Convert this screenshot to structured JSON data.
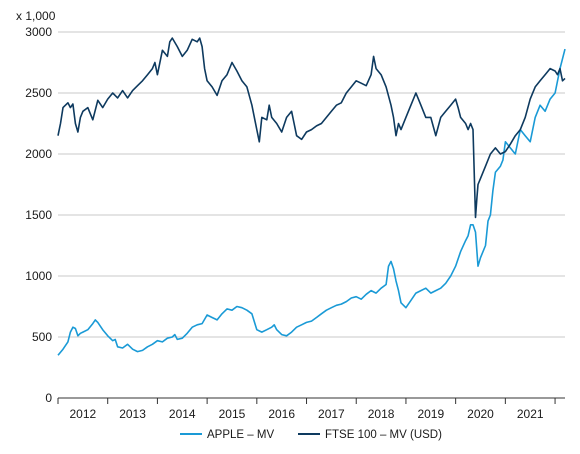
{
  "chart_data": {
    "type": "line",
    "unit_label": "x 1,000",
    "ylim": [
      0,
      3000
    ],
    "yticks": [
      0,
      500,
      1000,
      1500,
      2000,
      2500,
      3000
    ],
    "xlim": [
      2011.5,
      2021.7
    ],
    "xticks": [
      {
        "label": "2012",
        "at": 2012
      },
      {
        "label": "2013",
        "at": 2013
      },
      {
        "label": "2014",
        "at": 2014
      },
      {
        "label": "2015",
        "at": 2015
      },
      {
        "label": "2016",
        "at": 2016
      },
      {
        "label": "2017",
        "at": 2017
      },
      {
        "label": "2018",
        "at": 2018
      },
      {
        "label": "2019",
        "at": 2019
      },
      {
        "label": "2020",
        "at": 2020
      },
      {
        "label": "2021",
        "at": 2021
      }
    ],
    "grid": true,
    "legend_position": "bottom",
    "series": [
      {
        "name": "APPLE – MV",
        "color": "#1a9ad6",
        "points": [
          [
            2011.5,
            350
          ],
          [
            2011.6,
            400
          ],
          [
            2011.7,
            460
          ],
          [
            2011.75,
            540
          ],
          [
            2011.8,
            580
          ],
          [
            2011.85,
            570
          ],
          [
            2011.9,
            510
          ],
          [
            2011.95,
            530
          ],
          [
            2012.0,
            540
          ],
          [
            2012.1,
            560
          ],
          [
            2012.2,
            610
          ],
          [
            2012.25,
            640
          ],
          [
            2012.3,
            620
          ],
          [
            2012.4,
            560
          ],
          [
            2012.5,
            510
          ],
          [
            2012.6,
            470
          ],
          [
            2012.65,
            480
          ],
          [
            2012.7,
            420
          ],
          [
            2012.8,
            410
          ],
          [
            2012.9,
            440
          ],
          [
            2013.0,
            400
          ],
          [
            2013.1,
            380
          ],
          [
            2013.2,
            390
          ],
          [
            2013.3,
            420
          ],
          [
            2013.4,
            440
          ],
          [
            2013.5,
            470
          ],
          [
            2013.6,
            460
          ],
          [
            2013.7,
            490
          ],
          [
            2013.8,
            500
          ],
          [
            2013.85,
            520
          ],
          [
            2013.9,
            480
          ],
          [
            2014.0,
            490
          ],
          [
            2014.1,
            530
          ],
          [
            2014.2,
            580
          ],
          [
            2014.3,
            600
          ],
          [
            2014.4,
            610
          ],
          [
            2014.5,
            680
          ],
          [
            2014.6,
            660
          ],
          [
            2014.7,
            640
          ],
          [
            2014.8,
            690
          ],
          [
            2014.9,
            730
          ],
          [
            2015.0,
            720
          ],
          [
            2015.1,
            750
          ],
          [
            2015.2,
            740
          ],
          [
            2015.3,
            720
          ],
          [
            2015.4,
            690
          ],
          [
            2015.5,
            560
          ],
          [
            2015.6,
            540
          ],
          [
            2015.7,
            560
          ],
          [
            2015.8,
            580
          ],
          [
            2015.85,
            600
          ],
          [
            2015.9,
            560
          ],
          [
            2016.0,
            520
          ],
          [
            2016.1,
            510
          ],
          [
            2016.2,
            540
          ],
          [
            2016.3,
            580
          ],
          [
            2016.4,
            600
          ],
          [
            2016.5,
            620
          ],
          [
            2016.6,
            630
          ],
          [
            2016.7,
            660
          ],
          [
            2016.8,
            690
          ],
          [
            2016.9,
            720
          ],
          [
            2017.0,
            740
          ],
          [
            2017.1,
            760
          ],
          [
            2017.2,
            770
          ],
          [
            2017.3,
            790
          ],
          [
            2017.4,
            820
          ],
          [
            2017.5,
            830
          ],
          [
            2017.6,
            810
          ],
          [
            2017.7,
            850
          ],
          [
            2017.8,
            880
          ],
          [
            2017.9,
            860
          ],
          [
            2018.0,
            900
          ],
          [
            2018.1,
            930
          ],
          [
            2018.15,
            1080
          ],
          [
            2018.2,
            1120
          ],
          [
            2018.25,
            1060
          ],
          [
            2018.3,
            960
          ],
          [
            2018.35,
            880
          ],
          [
            2018.4,
            780
          ],
          [
            2018.5,
            740
          ],
          [
            2018.6,
            800
          ],
          [
            2018.7,
            860
          ],
          [
            2018.8,
            880
          ],
          [
            2018.9,
            900
          ],
          [
            2019.0,
            860
          ],
          [
            2019.1,
            880
          ],
          [
            2019.2,
            900
          ],
          [
            2019.3,
            940
          ],
          [
            2019.4,
            1000
          ],
          [
            2019.5,
            1080
          ],
          [
            2019.6,
            1200
          ],
          [
            2019.7,
            1290
          ],
          [
            2019.75,
            1330
          ],
          [
            2019.8,
            1420
          ],
          [
            2019.85,
            1420
          ],
          [
            2019.9,
            1360
          ],
          [
            2019.95,
            1080
          ],
          [
            2020.0,
            1150
          ],
          [
            2020.1,
            1250
          ],
          [
            2020.15,
            1450
          ],
          [
            2020.2,
            1500
          ],
          [
            2020.25,
            1700
          ],
          [
            2020.3,
            1850
          ],
          [
            2020.4,
            1900
          ],
          [
            2020.45,
            1950
          ],
          [
            2020.5,
            2100
          ],
          [
            2020.6,
            2050
          ],
          [
            2020.7,
            2000
          ],
          [
            2020.8,
            2200
          ],
          [
            2020.9,
            2150
          ],
          [
            2021.0,
            2100
          ],
          [
            2021.1,
            2300
          ],
          [
            2021.2,
            2400
          ],
          [
            2021.3,
            2350
          ],
          [
            2021.4,
            2450
          ],
          [
            2021.5,
            2500
          ],
          [
            2021.6,
            2700
          ],
          [
            2021.7,
            2860
          ]
        ]
      },
      {
        "name": "FTSE 100 – MV (USD)",
        "color": "#0e3a5f",
        "points": [
          [
            2011.5,
            2150
          ],
          [
            2011.55,
            2250
          ],
          [
            2011.6,
            2380
          ],
          [
            2011.7,
            2420
          ],
          [
            2011.75,
            2380
          ],
          [
            2011.8,
            2410
          ],
          [
            2011.85,
            2250
          ],
          [
            2011.9,
            2180
          ],
          [
            2011.95,
            2300
          ],
          [
            2012.0,
            2350
          ],
          [
            2012.1,
            2380
          ],
          [
            2012.2,
            2280
          ],
          [
            2012.3,
            2440
          ],
          [
            2012.4,
            2380
          ],
          [
            2012.5,
            2450
          ],
          [
            2012.6,
            2500
          ],
          [
            2012.7,
            2460
          ],
          [
            2012.8,
            2520
          ],
          [
            2012.9,
            2460
          ],
          [
            2013.0,
            2520
          ],
          [
            2013.1,
            2560
          ],
          [
            2013.2,
            2600
          ],
          [
            2013.3,
            2650
          ],
          [
            2013.4,
            2700
          ],
          [
            2013.45,
            2750
          ],
          [
            2013.5,
            2650
          ],
          [
            2013.6,
            2850
          ],
          [
            2013.7,
            2800
          ],
          [
            2013.75,
            2920
          ],
          [
            2013.8,
            2950
          ],
          [
            2013.9,
            2880
          ],
          [
            2014.0,
            2800
          ],
          [
            2014.1,
            2850
          ],
          [
            2014.2,
            2940
          ],
          [
            2014.3,
            2920
          ],
          [
            2014.35,
            2950
          ],
          [
            2014.4,
            2880
          ],
          [
            2014.45,
            2700
          ],
          [
            2014.5,
            2600
          ],
          [
            2014.6,
            2550
          ],
          [
            2014.7,
            2480
          ],
          [
            2014.8,
            2600
          ],
          [
            2014.9,
            2650
          ],
          [
            2015.0,
            2750
          ],
          [
            2015.1,
            2680
          ],
          [
            2015.2,
            2600
          ],
          [
            2015.3,
            2550
          ],
          [
            2015.4,
            2400
          ],
          [
            2015.5,
            2200
          ],
          [
            2015.55,
            2100
          ],
          [
            2015.6,
            2300
          ],
          [
            2015.7,
            2280
          ],
          [
            2015.75,
            2400
          ],
          [
            2015.8,
            2300
          ],
          [
            2015.9,
            2250
          ],
          [
            2016.0,
            2180
          ],
          [
            2016.1,
            2300
          ],
          [
            2016.2,
            2350
          ],
          [
            2016.25,
            2250
          ],
          [
            2016.3,
            2150
          ],
          [
            2016.4,
            2120
          ],
          [
            2016.5,
            2180
          ],
          [
            2016.6,
            2200
          ],
          [
            2016.7,
            2230
          ],
          [
            2016.8,
            2250
          ],
          [
            2016.9,
            2300
          ],
          [
            2017.0,
            2350
          ],
          [
            2017.1,
            2400
          ],
          [
            2017.2,
            2420
          ],
          [
            2017.3,
            2500
          ],
          [
            2017.4,
            2550
          ],
          [
            2017.5,
            2600
          ],
          [
            2017.6,
            2580
          ],
          [
            2017.7,
            2560
          ],
          [
            2017.8,
            2650
          ],
          [
            2017.85,
            2800
          ],
          [
            2017.9,
            2700
          ],
          [
            2018.0,
            2650
          ],
          [
            2018.1,
            2550
          ],
          [
            2018.2,
            2400
          ],
          [
            2018.25,
            2300
          ],
          [
            2018.3,
            2150
          ],
          [
            2018.35,
            2250
          ],
          [
            2018.4,
            2200
          ],
          [
            2018.5,
            2300
          ],
          [
            2018.6,
            2400
          ],
          [
            2018.7,
            2500
          ],
          [
            2018.75,
            2450
          ],
          [
            2018.8,
            2400
          ],
          [
            2018.9,
            2300
          ],
          [
            2019.0,
            2300
          ],
          [
            2019.1,
            2150
          ],
          [
            2019.2,
            2300
          ],
          [
            2019.3,
            2350
          ],
          [
            2019.4,
            2400
          ],
          [
            2019.5,
            2450
          ],
          [
            2019.55,
            2380
          ],
          [
            2019.6,
            2300
          ],
          [
            2019.7,
            2250
          ],
          [
            2019.75,
            2200
          ],
          [
            2019.8,
            2250
          ],
          [
            2019.85,
            2200
          ],
          [
            2019.9,
            1480
          ],
          [
            2019.93,
            1650
          ],
          [
            2019.95,
            1750
          ],
          [
            2020.0,
            1800
          ],
          [
            2020.1,
            1900
          ],
          [
            2020.2,
            2000
          ],
          [
            2020.3,
            2050
          ],
          [
            2020.4,
            2000
          ],
          [
            2020.5,
            2020
          ],
          [
            2020.6,
            2080
          ],
          [
            2020.7,
            2150
          ],
          [
            2020.8,
            2200
          ],
          [
            2020.9,
            2300
          ],
          [
            2021.0,
            2450
          ],
          [
            2021.1,
            2550
          ],
          [
            2021.2,
            2600
          ],
          [
            2021.3,
            2650
          ],
          [
            2021.4,
            2700
          ],
          [
            2021.5,
            2680
          ],
          [
            2021.55,
            2650
          ],
          [
            2021.6,
            2700
          ],
          [
            2021.65,
            2600
          ],
          [
            2021.7,
            2620
          ]
        ]
      }
    ]
  }
}
